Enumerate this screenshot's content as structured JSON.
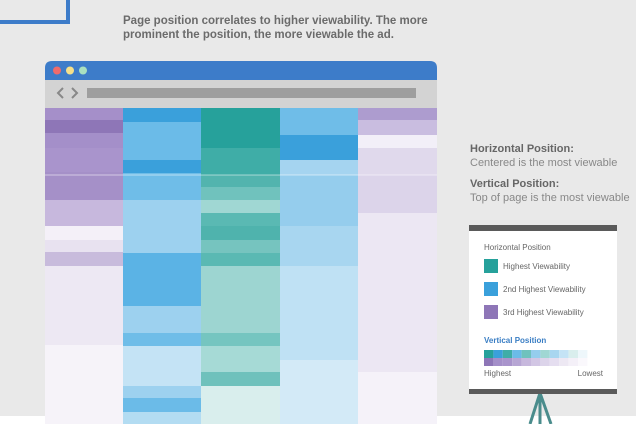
{
  "header": {
    "lines": [
      "Page position correlates to higher viewability. The more",
      "prominent the position, the more viewable the ad."
    ]
  },
  "notes": [
    {
      "title": "Horizontal Position:",
      "text": "Centered is the most viewable"
    },
    {
      "title": "Vertical Position:",
      "text": "Top of page is the most viewable"
    }
  ],
  "legend": {
    "title": "Horizontal Position",
    "items": [
      "Highest Viewability",
      "2nd Highest Viewability",
      "3rd Highest Viewability"
    ],
    "vertical_title": "Vertical Position",
    "high_label": "Highest",
    "low_label": "Lowest"
  }
}
